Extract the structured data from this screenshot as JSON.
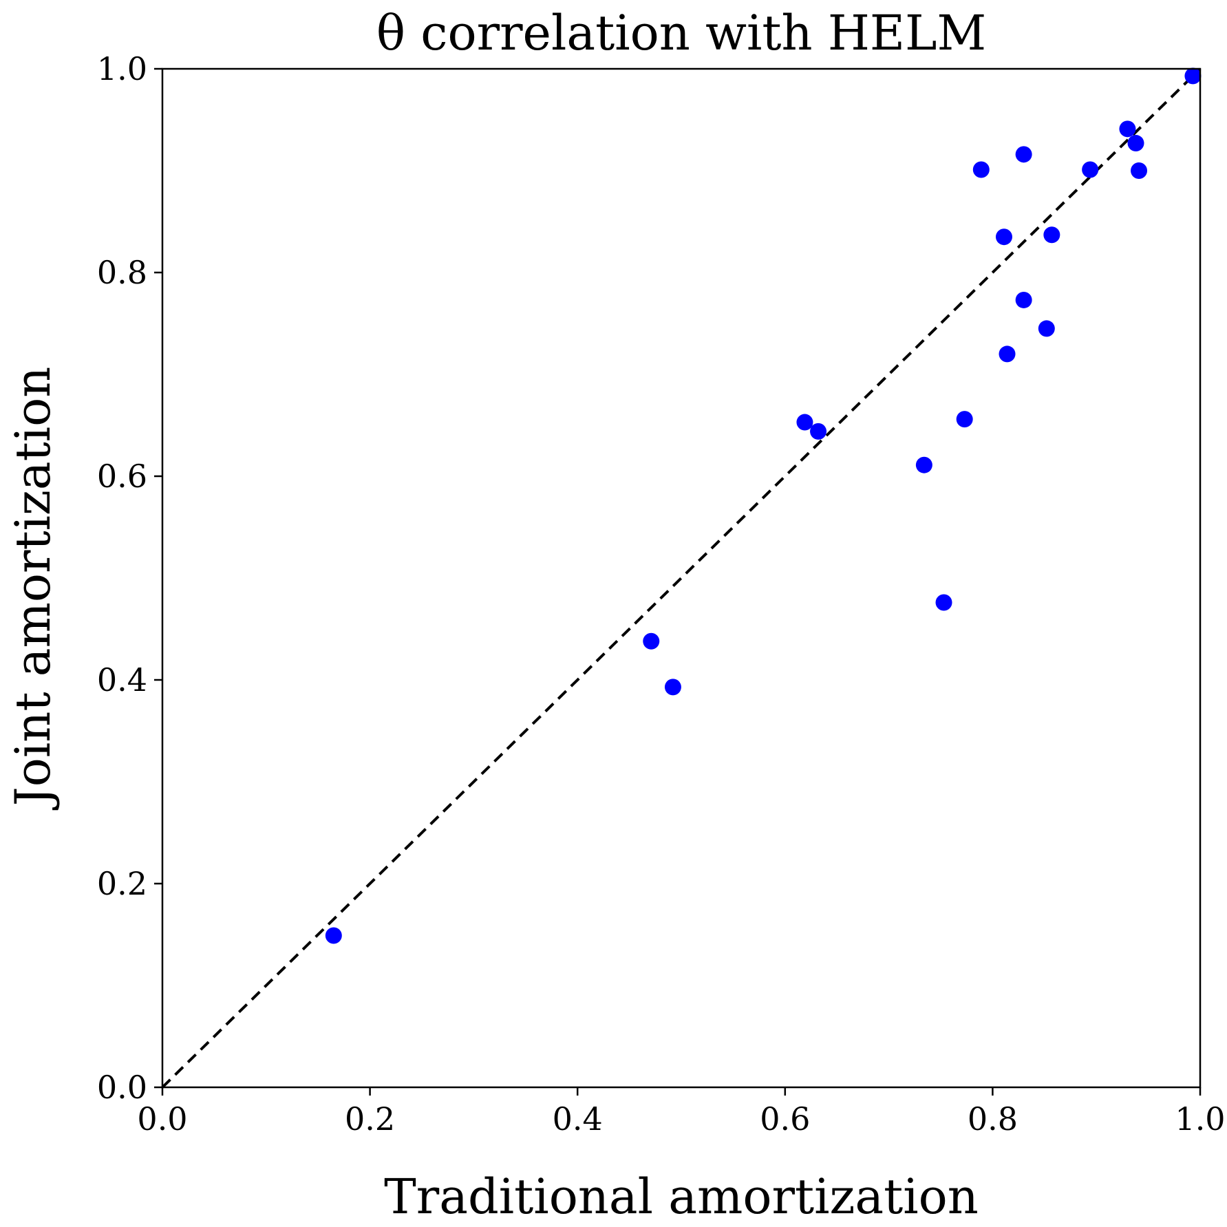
{
  "chart_data": {
    "type": "scatter",
    "title": "θ correlation with HELM",
    "xlabel": "Traditional amortization",
    "ylabel": "Joint amortization",
    "xlim": [
      0.0,
      1.0
    ],
    "ylim": [
      0.0,
      1.0
    ],
    "xticks": [
      "0.0",
      "0.2",
      "0.4",
      "0.6",
      "0.8",
      "1.0"
    ],
    "yticks": [
      "0.0",
      "0.2",
      "0.4",
      "0.6",
      "0.8",
      "1.0"
    ],
    "grid": false,
    "reference_line": {
      "style": "dashed",
      "color": "#000000",
      "from": [
        0.0,
        0.0
      ],
      "to": [
        1.0,
        1.0
      ]
    },
    "marker_color": "#0000ff",
    "series": [
      {
        "points": [
          [
            0.165,
            0.149
          ],
          [
            0.471,
            0.438
          ],
          [
            0.492,
            0.393
          ],
          [
            0.619,
            0.653
          ],
          [
            0.632,
            0.644
          ],
          [
            0.734,
            0.611
          ],
          [
            0.753,
            0.476
          ],
          [
            0.773,
            0.656
          ],
          [
            0.789,
            0.901
          ],
          [
            0.811,
            0.835
          ],
          [
            0.814,
            0.72
          ],
          [
            0.83,
            0.916
          ],
          [
            0.83,
            0.773
          ],
          [
            0.852,
            0.745
          ],
          [
            0.857,
            0.837
          ],
          [
            0.894,
            0.901
          ],
          [
            0.93,
            0.941
          ],
          [
            0.938,
            0.927
          ],
          [
            0.941,
            0.9
          ],
          [
            0.993,
            0.993
          ]
        ]
      }
    ]
  }
}
